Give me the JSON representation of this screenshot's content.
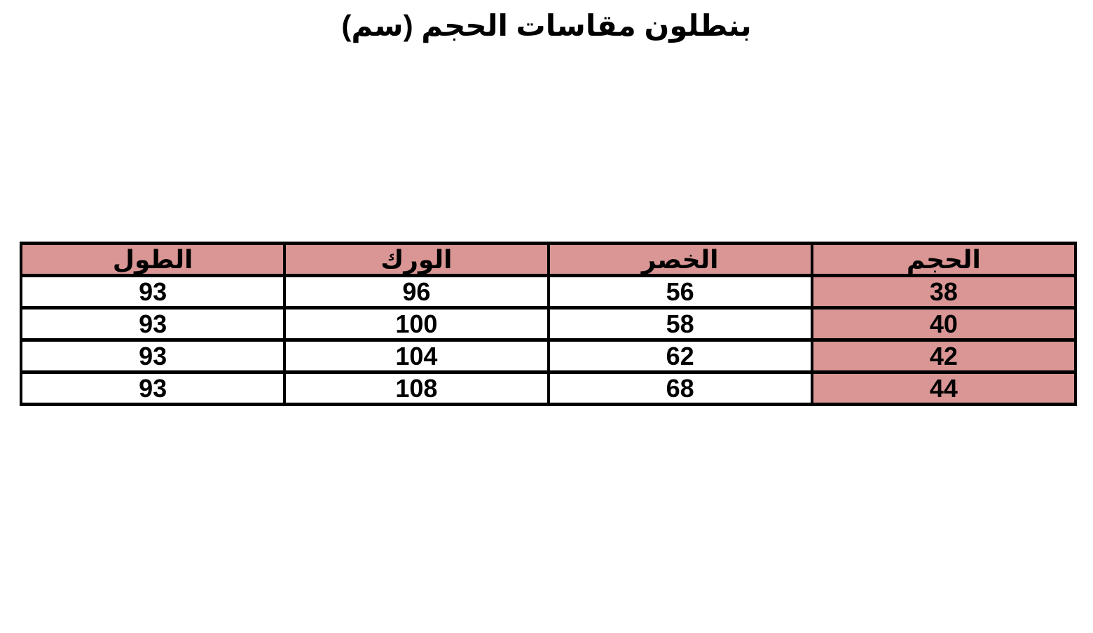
{
  "page": {
    "title": "بنطلون مقاسات الحجم (سم)"
  },
  "chart_data": {
    "type": "table",
    "direction": "rtl",
    "title": "بنطلون مقاسات الحجم (سم)",
    "columns": [
      "الحجم",
      "الخصر",
      "الورك",
      "الطول"
    ],
    "columns_translated": [
      "Size",
      "Waist",
      "Hip",
      "Length"
    ],
    "rows": [
      [
        "38",
        "56",
        "96",
        "93"
      ],
      [
        "40",
        "58",
        "100",
        "93"
      ],
      [
        "42",
        "62",
        "104",
        "93"
      ],
      [
        "44",
        "68",
        "108",
        "93"
      ]
    ],
    "highlighted_column": "الحجم",
    "layout": {
      "header_fill": true,
      "size_column_fill": true,
      "grid": true
    }
  },
  "colors": {
    "accent": "#d99694",
    "border": "#000000",
    "text": "#000000",
    "background": "#ffffff"
  }
}
